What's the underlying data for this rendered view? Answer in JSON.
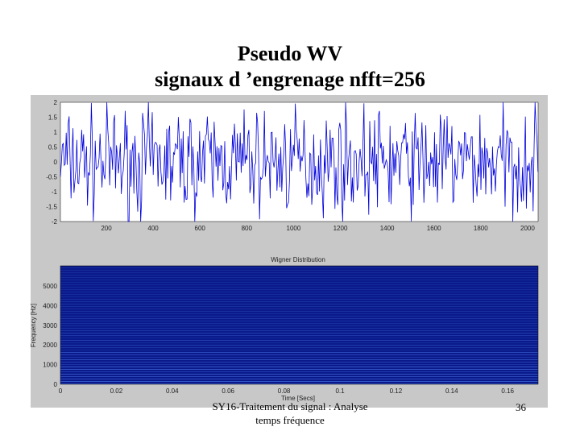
{
  "slide": {
    "title": [
      "Pseudo WV",
      "signaux d ’engrenage nfft=256"
    ],
    "footer": [
      "SY16-Traitement du signal : Analyse",
      "temps fréquence"
    ],
    "page_number": "36"
  },
  "figure": {
    "top_plot": {
      "yticks": [
        "2",
        "1.5",
        "1",
        "0.5",
        "0",
        "-0.5",
        "-1",
        "-1.5",
        "-2"
      ],
      "xticks": [
        "200",
        "400",
        "600",
        "800",
        "1000",
        "1200",
        "1400",
        "1600",
        "1800",
        "2000"
      ]
    },
    "bottom_plot": {
      "title": "Wigner Distribution",
      "ylabel": "Frequency [Hz]",
      "xlabel": "Time [Secs]",
      "yticks": [
        "0",
        "1000",
        "2000",
        "3000",
        "4000",
        "5000"
      ],
      "xticks": [
        "0",
        "0.02",
        "0.04",
        "0.06",
        "0.08",
        "0.1",
        "0.12",
        "0.14",
        "0.16"
      ]
    }
  }
}
